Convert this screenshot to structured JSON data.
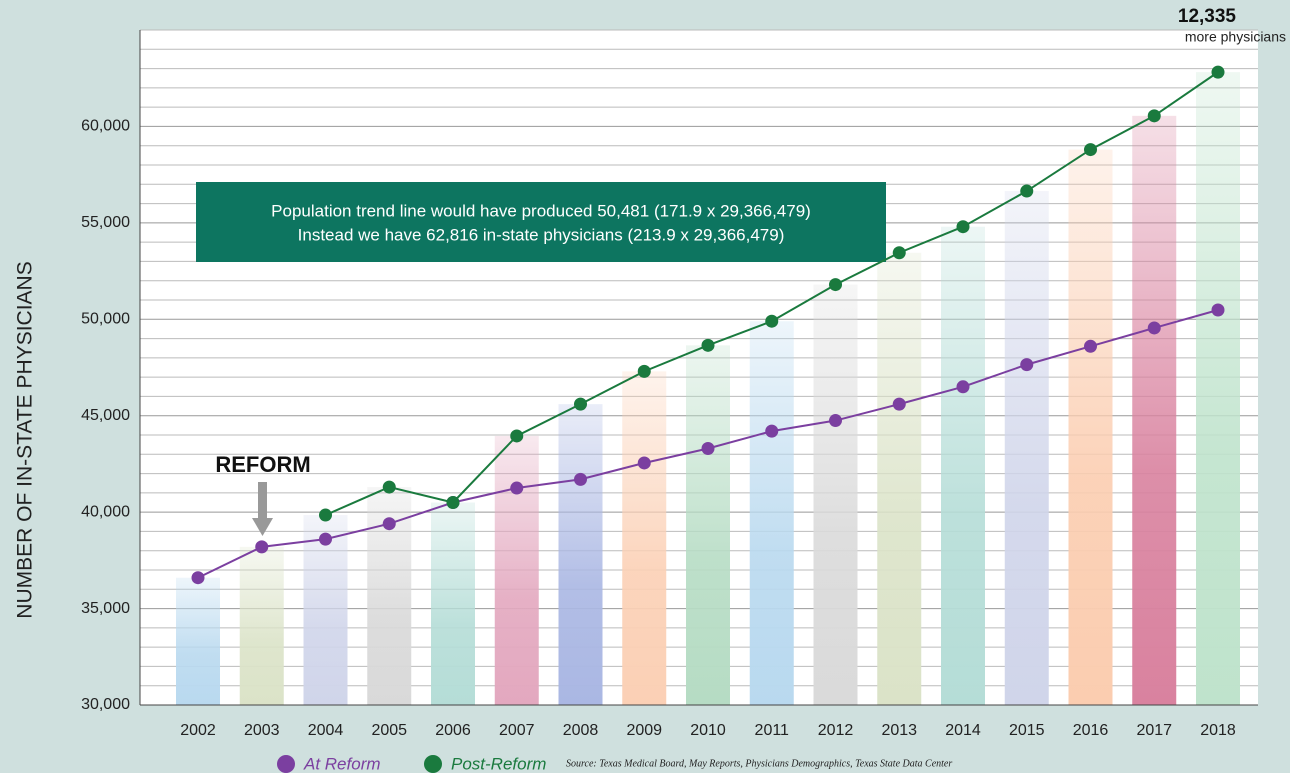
{
  "chart_data": {
    "type": "line",
    "y_axis_label": "NUMBER OF IN-STATE PHYSICIANS",
    "categories": [
      "2002",
      "2003",
      "2004",
      "2005",
      "2006",
      "2007",
      "2008",
      "2009",
      "2010",
      "2011",
      "2012",
      "2013",
      "2014",
      "2015",
      "2016",
      "2017",
      "2018"
    ],
    "series": [
      {
        "name": "At Reform",
        "color": "#7b3fa0",
        "values": [
          36600,
          38200,
          38600,
          39400,
          40500,
          41250,
          41700,
          42550,
          43300,
          44200,
          44750,
          45600,
          46500,
          47650,
          48600,
          49550,
          50481
        ]
      },
      {
        "name": "Post-Reform",
        "color": "#1a7a3e",
        "values": [
          null,
          null,
          39850,
          41300,
          40500,
          43950,
          45600,
          47300,
          48650,
          49900,
          51800,
          53450,
          54800,
          56650,
          58800,
          60550,
          62816
        ]
      }
    ],
    "bar_colors": [
      "#b9d9ef",
      "#dbe3c8",
      "#d0d5ea",
      "#d9d9d9",
      "#b5ddd7",
      "#e3a8bf",
      "#aab7e3",
      "#fbd0b5",
      "#b6dcc4",
      "#b9d9ef",
      "#dadada",
      "#dbe3c8",
      "#b5ddd7",
      "#d0d5ea",
      "#fbcdb0",
      "#d9829f",
      "#bfe3cc"
    ],
    "ylim": [
      30000,
      65000
    ],
    "yticks": [
      {
        "value": 30000,
        "label": "30,000"
      },
      {
        "value": 35000,
        "label": "35,000"
      },
      {
        "value": 40000,
        "label": "40,000"
      },
      {
        "value": 45000,
        "label": "45,000"
      },
      {
        "value": 50000,
        "label": "50,000"
      },
      {
        "value": 55000,
        "label": "55,000"
      },
      {
        "value": 60000,
        "label": "60,000"
      }
    ],
    "minor_yticks": [
      31000,
      32000,
      33000,
      34000,
      36000,
      37000,
      38000,
      39000,
      41000,
      42000,
      43000,
      44000,
      46000,
      47000,
      48000,
      49000,
      51000,
      52000,
      53000,
      54000,
      56000,
      57000,
      58000,
      59000,
      61000,
      62000,
      63000,
      64000,
      65000
    ],
    "grid": true,
    "annotations": {
      "box_line1": "Population trend line would have produced 50,481 (171.9 x 29,366,479)",
      "box_line2": "Instead we have 62,816 in-state physicians (213.9 x 29,366,479)",
      "reform": "REFORM",
      "difference": "12,335",
      "difference_note": "more physicians",
      "source": "Source: Texas Medical Board, May Reports, Physicians Demographics, Texas State Data Center"
    }
  }
}
